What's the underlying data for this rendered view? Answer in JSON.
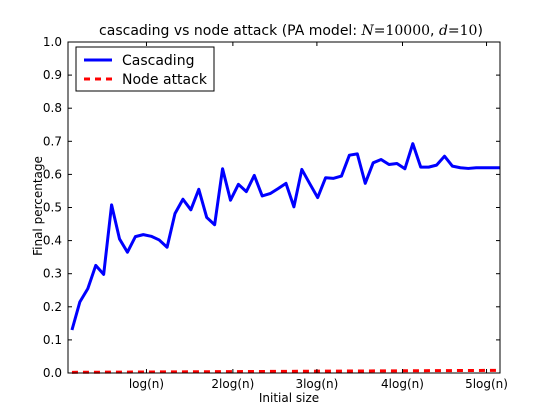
{
  "chart_data": {
    "type": "line",
    "title": {
      "prefix": "cascading vs node attack (PA model: ",
      "n_var": "N",
      "n_eq": "=",
      "n_val": "10000",
      "sep": ", ",
      "d_var": "d",
      "d_eq": "=",
      "d_val": "10",
      "suffix": ")"
    },
    "xlabel": "Initial size",
    "ylabel": "Final percentage",
    "ylim": [
      0,
      1.0
    ],
    "xlim": [
      0.5,
      55
    ],
    "yticks": [
      {
        "value": 0.0,
        "label": "0.0"
      },
      {
        "value": 0.1,
        "label": "0.1"
      },
      {
        "value": 0.2,
        "label": "0.2"
      },
      {
        "value": 0.3,
        "label": "0.3"
      },
      {
        "value": 0.4,
        "label": "0.4"
      },
      {
        "value": 0.5,
        "label": "0.5"
      },
      {
        "value": 0.6,
        "label": "0.6"
      },
      {
        "value": 0.7,
        "label": "0.7"
      },
      {
        "value": 0.8,
        "label": "0.8"
      },
      {
        "value": 0.9,
        "label": "0.9"
      },
      {
        "value": 1.0,
        "label": "1.0"
      }
    ],
    "xticks": [
      {
        "value": 10.4,
        "label": "log(n)"
      },
      {
        "value": 21.3,
        "label": "2log(n)"
      },
      {
        "value": 31.9,
        "label": "3log(n)"
      },
      {
        "value": 42.7,
        "label": "4log(n)"
      },
      {
        "value": 53.3,
        "label": "5log(n)"
      }
    ],
    "grid": false,
    "legend_position": "top-left",
    "series": [
      {
        "name": "Cascading",
        "color": "#0000ff",
        "style": "solid",
        "x": [
          1,
          2,
          3,
          4,
          5,
          6,
          7,
          8,
          9,
          10,
          11,
          12,
          13,
          14,
          15,
          16,
          17,
          18,
          19,
          20,
          21,
          22,
          23,
          24,
          25,
          26,
          27,
          28,
          29,
          30,
          31,
          32,
          33,
          34,
          35,
          36,
          37,
          38,
          39,
          40,
          41,
          42,
          43,
          44,
          45,
          46,
          47,
          48,
          49,
          50,
          51,
          52,
          53,
          54,
          55
        ],
        "values": [
          0.13,
          0.215,
          0.255,
          0.325,
          0.298,
          0.508,
          0.405,
          0.365,
          0.412,
          0.418,
          0.413,
          0.402,
          0.38,
          0.482,
          0.525,
          0.493,
          0.555,
          0.47,
          0.448,
          0.617,
          0.522,
          0.57,
          0.548,
          0.597,
          0.535,
          0.542,
          0.557,
          0.573,
          0.502,
          0.615,
          0.572,
          0.53,
          0.59,
          0.588,
          0.595,
          0.658,
          0.662,
          0.573,
          0.635,
          0.645,
          0.63,
          0.633,
          0.617,
          0.693,
          0.622,
          0.622,
          0.628,
          0.655,
          0.625,
          0.62,
          0.618,
          0.62,
          0.62,
          0.62,
          0.62
        ]
      },
      {
        "name": "Node attack",
        "color": "#ff0000",
        "style": "dashed",
        "x": [
          1,
          55
        ],
        "values": [
          0.002,
          0.008
        ]
      }
    ]
  }
}
